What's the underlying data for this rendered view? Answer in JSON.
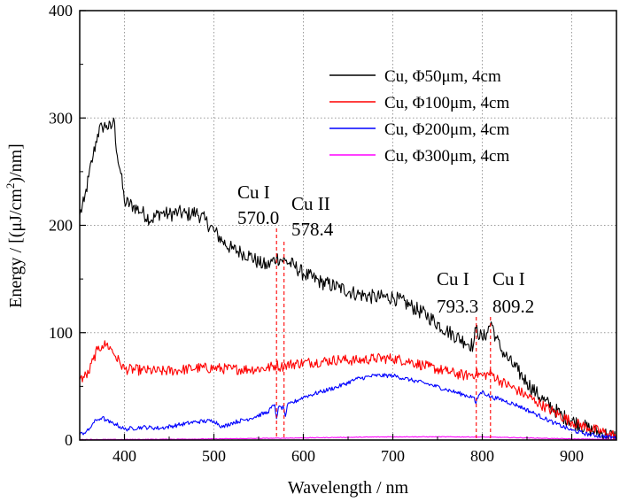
{
  "chart_data": {
    "type": "line",
    "xlabel": "Wavelength / nm",
    "ylabel_parts": [
      "Energy / [(μJ/cm",
      "2",
      ")/nm]"
    ],
    "xlim": [
      350,
      950
    ],
    "ylim": [
      0,
      400
    ],
    "x_ticks": [
      400,
      500,
      600,
      700,
      800,
      900
    ],
    "y_ticks": [
      0,
      100,
      200,
      300,
      400
    ],
    "grid": true,
    "legend_position": "top-right",
    "series": [
      {
        "name": "Cu, Φ50μm, 4cm",
        "color": "#000000",
        "noise": 7,
        "points": [
          [
            350,
            210
          ],
          [
            355,
            222
          ],
          [
            360,
            245
          ],
          [
            365,
            265
          ],
          [
            370,
            285
          ],
          [
            375,
            292
          ],
          [
            380,
            293
          ],
          [
            385,
            290
          ],
          [
            388,
            300
          ],
          [
            392,
            265
          ],
          [
            396,
            248
          ],
          [
            400,
            222
          ],
          [
            410,
            218
          ],
          [
            420,
            212
          ],
          [
            430,
            205
          ],
          [
            440,
            212
          ],
          [
            450,
            210
          ],
          [
            460,
            212
          ],
          [
            470,
            210
          ],
          [
            480,
            212
          ],
          [
            490,
            205
          ],
          [
            500,
            195
          ],
          [
            510,
            185
          ],
          [
            520,
            178
          ],
          [
            530,
            175
          ],
          [
            540,
            172
          ],
          [
            550,
            165
          ],
          [
            560,
            162
          ],
          [
            570,
            170
          ],
          [
            575,
            168
          ],
          [
            580,
            167
          ],
          [
            590,
            162
          ],
          [
            600,
            155
          ],
          [
            620,
            147
          ],
          [
            640,
            142
          ],
          [
            660,
            136
          ],
          [
            680,
            133
          ],
          [
            700,
            133
          ],
          [
            720,
            125
          ],
          [
            740,
            115
          ],
          [
            760,
            102
          ],
          [
            780,
            92
          ],
          [
            790,
            88
          ],
          [
            793,
            104
          ],
          [
            800,
            94
          ],
          [
            805,
            100
          ],
          [
            810,
            110
          ],
          [
            815,
            96
          ],
          [
            820,
            86
          ],
          [
            830,
            74
          ],
          [
            840,
            64
          ],
          [
            850,
            54
          ],
          [
            860,
            44
          ],
          [
            870,
            36
          ],
          [
            880,
            29
          ],
          [
            890,
            22
          ],
          [
            900,
            18
          ],
          [
            910,
            14
          ],
          [
            920,
            10
          ],
          [
            930,
            7
          ],
          [
            940,
            5
          ],
          [
            950,
            3
          ]
        ]
      },
      {
        "name": "Cu, Φ100μm, 4cm",
        "color": "#ff0000",
        "noise": 5,
        "points": [
          [
            350,
            56
          ],
          [
            360,
            62
          ],
          [
            365,
            75
          ],
          [
            370,
            84
          ],
          [
            375,
            88
          ],
          [
            380,
            89
          ],
          [
            385,
            85
          ],
          [
            390,
            78
          ],
          [
            395,
            72
          ],
          [
            400,
            66
          ],
          [
            420,
            65
          ],
          [
            440,
            64
          ],
          [
            460,
            65
          ],
          [
            480,
            67
          ],
          [
            500,
            67
          ],
          [
            520,
            66
          ],
          [
            540,
            66
          ],
          [
            560,
            67
          ],
          [
            570,
            70
          ],
          [
            575,
            68
          ],
          [
            580,
            70
          ],
          [
            600,
            72
          ],
          [
            620,
            73
          ],
          [
            640,
            75
          ],
          [
            660,
            74
          ],
          [
            680,
            76
          ],
          [
            700,
            76
          ],
          [
            720,
            73
          ],
          [
            740,
            68
          ],
          [
            760,
            64
          ],
          [
            780,
            60
          ],
          [
            793,
            62
          ],
          [
            800,
            60
          ],
          [
            810,
            62
          ],
          [
            820,
            55
          ],
          [
            840,
            46
          ],
          [
            860,
            36
          ],
          [
            880,
            26
          ],
          [
            900,
            17
          ],
          [
            920,
            11
          ],
          [
            940,
            6
          ],
          [
            950,
            4
          ]
        ]
      },
      {
        "name": "Cu, Φ200μm, 4cm",
        "color": "#0000ff",
        "noise": 2,
        "points": [
          [
            350,
            5
          ],
          [
            360,
            9
          ],
          [
            365,
            16
          ],
          [
            370,
            19
          ],
          [
            375,
            21
          ],
          [
            380,
            18
          ],
          [
            385,
            16
          ],
          [
            390,
            15
          ],
          [
            400,
            10
          ],
          [
            420,
            12
          ],
          [
            440,
            11
          ],
          [
            460,
            14
          ],
          [
            480,
            17
          ],
          [
            500,
            18
          ],
          [
            510,
            12
          ],
          [
            520,
            16
          ],
          [
            540,
            20
          ],
          [
            560,
            26
          ],
          [
            568,
            33
          ],
          [
            570,
            20
          ],
          [
            572,
            30
          ],
          [
            578,
            30
          ],
          [
            580,
            22
          ],
          [
            582,
            32
          ],
          [
            600,
            40
          ],
          [
            620,
            45
          ],
          [
            640,
            50
          ],
          [
            660,
            57
          ],
          [
            680,
            60
          ],
          [
            700,
            60
          ],
          [
            720,
            56
          ],
          [
            740,
            52
          ],
          [
            760,
            47
          ],
          [
            780,
            42
          ],
          [
            790,
            40
          ],
          [
            793,
            34
          ],
          [
            796,
            42
          ],
          [
            800,
            45
          ],
          [
            810,
            40
          ],
          [
            820,
            38
          ],
          [
            840,
            32
          ],
          [
            860,
            24
          ],
          [
            880,
            16
          ],
          [
            900,
            9
          ],
          [
            920,
            5
          ],
          [
            950,
            2
          ]
        ]
      },
      {
        "name": "Cu, Φ300μm, 4cm",
        "color": "#ff00ff",
        "noise": 0.3,
        "points": [
          [
            350,
            0.5
          ],
          [
            400,
            0.5
          ],
          [
            500,
            1
          ],
          [
            550,
            1.5
          ],
          [
            600,
            2
          ],
          [
            650,
            2.5
          ],
          [
            700,
            3
          ],
          [
            750,
            3
          ],
          [
            800,
            2.8
          ],
          [
            850,
            2
          ],
          [
            900,
            1
          ],
          [
            950,
            0.5
          ]
        ]
      }
    ],
    "annotations": [
      {
        "line1": "Cu I",
        "line2": "570.0",
        "wavelength": 570.0
      },
      {
        "line1": "Cu II",
        "line2": "578.4",
        "wavelength": 578.4
      },
      {
        "line1": "Cu I",
        "line2": "793.3",
        "wavelength": 793.3
      },
      {
        "line1": "Cu I",
        "line2": "809.2",
        "wavelength": 809.2
      }
    ],
    "annotation_line_color": "#ff0000"
  }
}
